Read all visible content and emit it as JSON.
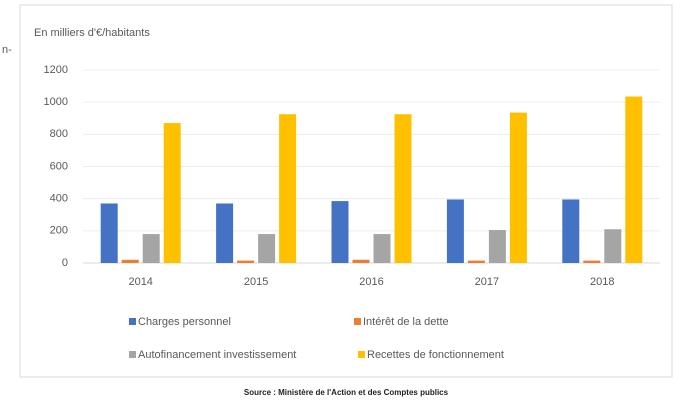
{
  "page_fragment": "n-",
  "chart_data": {
    "type": "bar",
    "axis_label": "En milliers d'€/habitants",
    "source": "Source : Ministère de l'Action et des Comptes publics",
    "categories": [
      "2014",
      "2015",
      "2016",
      "2017",
      "2018"
    ],
    "series": [
      {
        "name": "Charges personnel",
        "color": "#4472c4",
        "values": [
          370,
          370,
          385,
          395,
          395
        ]
      },
      {
        "name": "Intérêt de la dette",
        "color": "#ed7d31",
        "values": [
          20,
          15,
          20,
          15,
          15
        ]
      },
      {
        "name": "Autofinancement investissement",
        "color": "#a5a5a5",
        "values": [
          180,
          180,
          180,
          205,
          210
        ]
      },
      {
        "name": "Recettes de fonctionnement",
        "color": "#ffc000",
        "values": [
          870,
          925,
          925,
          935,
          1035
        ]
      }
    ],
    "ylim": [
      0,
      1200
    ],
    "yticks": [
      0,
      200,
      400,
      600,
      800,
      1000,
      1200
    ],
    "grid": true,
    "legend": "bottom"
  }
}
